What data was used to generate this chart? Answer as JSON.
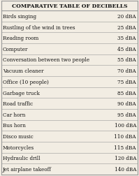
{
  "title": "COMPARATIVE TABLE OF DECIBELLS",
  "rows": [
    [
      "Birds singing",
      "20 dBA"
    ],
    [
      "Rustling of the wind in trees",
      "25 dBA"
    ],
    [
      "Reading room",
      "35 dBA"
    ],
    [
      "Computer",
      "45 dBA"
    ],
    [
      "Conversation between two people",
      "55 dBA"
    ],
    [
      "Vacuum cleaner",
      "70 dBA"
    ],
    [
      "Office (10 people)",
      "75 dBA"
    ],
    [
      "Garbage truck",
      "85 dBA"
    ],
    [
      "Road traffic",
      "90 dBA"
    ],
    [
      "Car horn",
      "95 dBA"
    ],
    [
      "Bus horn",
      "100 dBA"
    ],
    [
      "Disco music",
      "110 dBA"
    ],
    [
      "Motorcycles",
      "115 dBA"
    ],
    [
      "Hydraulic drill",
      "120 dBA"
    ],
    [
      "Jet airplane takeoff",
      "140 dBA"
    ]
  ],
  "bg_color": "#f2ede3",
  "title_fontsize": 5.5,
  "row_fontsize": 5.2,
  "line_color": "#999999",
  "text_color": "#111111"
}
